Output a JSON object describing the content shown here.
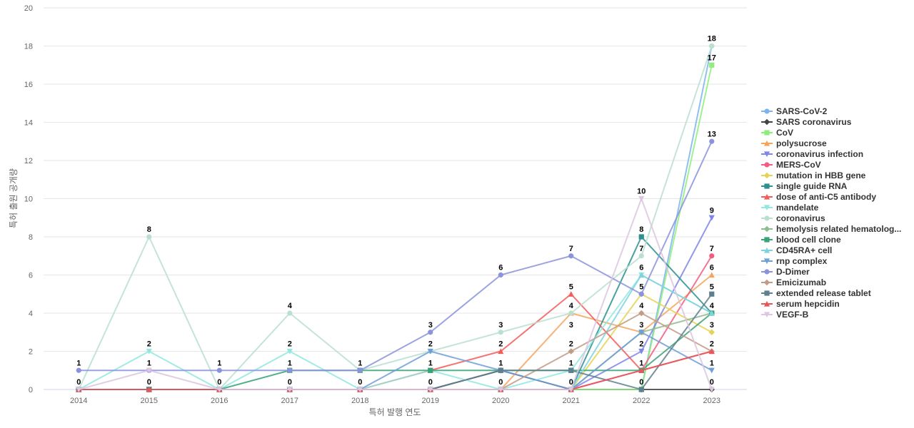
{
  "chart_data": {
    "type": "line",
    "xlabel": "특허 발행 연도",
    "ylabel": "특허 출원 공개량",
    "ylim": [
      0,
      20
    ],
    "yticks": [
      0,
      2,
      4,
      6,
      8,
      10,
      12,
      14,
      16,
      18,
      20
    ],
    "x": [
      2014,
      2015,
      2016,
      2017,
      2018,
      2019,
      2020,
      2021,
      2022,
      2023
    ],
    "grid": true,
    "legend_position": "right",
    "series": [
      {
        "name": "SARS-CoV-2",
        "color": "#7cb5ec",
        "marker": "circle",
        "values": [
          0,
          0,
          0,
          0,
          0,
          0,
          0,
          0,
          0,
          18
        ]
      },
      {
        "name": "SARS coronavirus",
        "color": "#434348",
        "marker": "diamond",
        "values": [
          0,
          0,
          0,
          0,
          0,
          0,
          1,
          0,
          0,
          0
        ]
      },
      {
        "name": "CoV",
        "color": "#90ed7d",
        "marker": "square",
        "values": [
          0,
          0,
          0,
          0,
          0,
          0,
          0,
          0,
          0,
          17
        ]
      },
      {
        "name": "polysucrose",
        "color": "#f7a35c",
        "marker": "triangle",
        "values": [
          0,
          0,
          0,
          0,
          0,
          0,
          0,
          4,
          3,
          6
        ]
      },
      {
        "name": "coronavirus infection",
        "color": "#8085e9",
        "marker": "triangle-down",
        "values": [
          0,
          0,
          0,
          0,
          0,
          0,
          0,
          0,
          2,
          9
        ]
      },
      {
        "name": "MERS-CoV",
        "color": "#f15c80",
        "marker": "circle",
        "values": [
          0,
          0,
          0,
          0,
          0,
          0,
          0,
          0,
          1,
          7
        ]
      },
      {
        "name": "mutation in HBB gene",
        "color": "#e4d354",
        "marker": "diamond",
        "values": [
          0,
          0,
          0,
          0,
          0,
          0,
          0,
          0,
          5,
          3
        ]
      },
      {
        "name": "single guide RNA",
        "color": "#2b908f",
        "marker": "square",
        "values": [
          0,
          0,
          0,
          0,
          0,
          0,
          0,
          0,
          8,
          4
        ]
      },
      {
        "name": "dose of anti-C5 antibody",
        "color": "#f45b5b",
        "marker": "triangle",
        "values": [
          0,
          0,
          0,
          0,
          0,
          1,
          2,
          5,
          1,
          2
        ]
      },
      {
        "name": "mandelate",
        "color": "#91e8e1",
        "marker": "triangle-down",
        "values": [
          0,
          2,
          0,
          2,
          0,
          1,
          0,
          1,
          6,
          4
        ]
      },
      {
        "name": "coronavirus",
        "color": "#b9dfcf",
        "marker": "circle",
        "values": [
          0,
          8,
          0,
          4,
          1,
          2,
          3,
          4,
          7,
          18
        ]
      },
      {
        "name": "hemolysis related hematolog...",
        "color": "#8fbc8f",
        "marker": "diamond",
        "values": [
          0,
          0,
          0,
          0,
          0,
          0,
          0,
          0,
          3,
          4
        ]
      },
      {
        "name": "blood cell clone",
        "color": "#3aa278",
        "marker": "square",
        "values": [
          0,
          0,
          0,
          1,
          1,
          1,
          1,
          1,
          1,
          4
        ]
      },
      {
        "name": "CD45RA+ cell",
        "color": "#7fd3e0",
        "marker": "triangle",
        "values": [
          0,
          0,
          0,
          0,
          0,
          0,
          0,
          0,
          6,
          4
        ]
      },
      {
        "name": "rnp complex",
        "color": "#6f9fd8",
        "marker": "triangle-down",
        "values": [
          0,
          0,
          0,
          0,
          0,
          2,
          1,
          0,
          3,
          1
        ]
      },
      {
        "name": "D-Dimer",
        "color": "#8b93dc",
        "marker": "circle",
        "values": [
          1,
          1,
          1,
          1,
          1,
          3,
          6,
          7,
          5,
          13
        ]
      },
      {
        "name": "Emicizumab",
        "color": "#c09b85",
        "marker": "diamond",
        "values": [
          0,
          0,
          0,
          0,
          0,
          0,
          0,
          2,
          4,
          2
        ]
      },
      {
        "name": "extended release tablet",
        "color": "#5e7f8e",
        "marker": "square",
        "values": [
          0,
          0,
          0,
          0,
          0,
          0,
          1,
          1,
          0,
          5
        ]
      },
      {
        "name": "serum hepcidin",
        "color": "#e8555a",
        "marker": "triangle",
        "values": [
          0,
          0,
          0,
          0,
          0,
          0,
          0,
          0,
          1,
          2
        ]
      },
      {
        "name": "VEGF-B",
        "color": "#dcc6e0",
        "marker": "triangle-down",
        "values": [
          0,
          1,
          0,
          0,
          0,
          0,
          0,
          0,
          10,
          0
        ]
      }
    ],
    "data_labels": [
      {
        "x": 2014,
        "top": 1,
        "bottom": 0
      },
      {
        "x": 2015,
        "top": 8,
        "mid": 2,
        "low": 1,
        "bottom": 0
      },
      {
        "x": 2016,
        "top": 1,
        "bottom": 0
      },
      {
        "x": 2017,
        "top": 4,
        "mid": 2,
        "low": 1,
        "bottom": 0
      },
      {
        "x": 2018,
        "top": 1,
        "bottom": 0
      },
      {
        "x": 2019,
        "top": 3,
        "mid": 2,
        "low": 1,
        "bottom": 0
      },
      {
        "x": 2020,
        "top": 6,
        "mid": 3,
        "mid2": 2,
        "low": 1,
        "bottom": 0
      },
      {
        "x": 2021,
        "top": 7,
        "mid": 5,
        "mid2": 4,
        "mid3": 3,
        "mid4": 2,
        "low": 1,
        "bottom": 0
      },
      {
        "x": 2022,
        "top": 10,
        "a": 8,
        "b": 7,
        "c": 6,
        "d": 5,
        "e": 4,
        "f": 3,
        "g": 2,
        "h": 1,
        "bottom": 0
      },
      {
        "x": 2023,
        "top": 18,
        "a": 17,
        "b": 13,
        "c": 9,
        "d": 7,
        "e": 6,
        "f": 5,
        "g": 4,
        "h": 3,
        "i": 2,
        "j": 1,
        "bottom": 0
      }
    ]
  }
}
